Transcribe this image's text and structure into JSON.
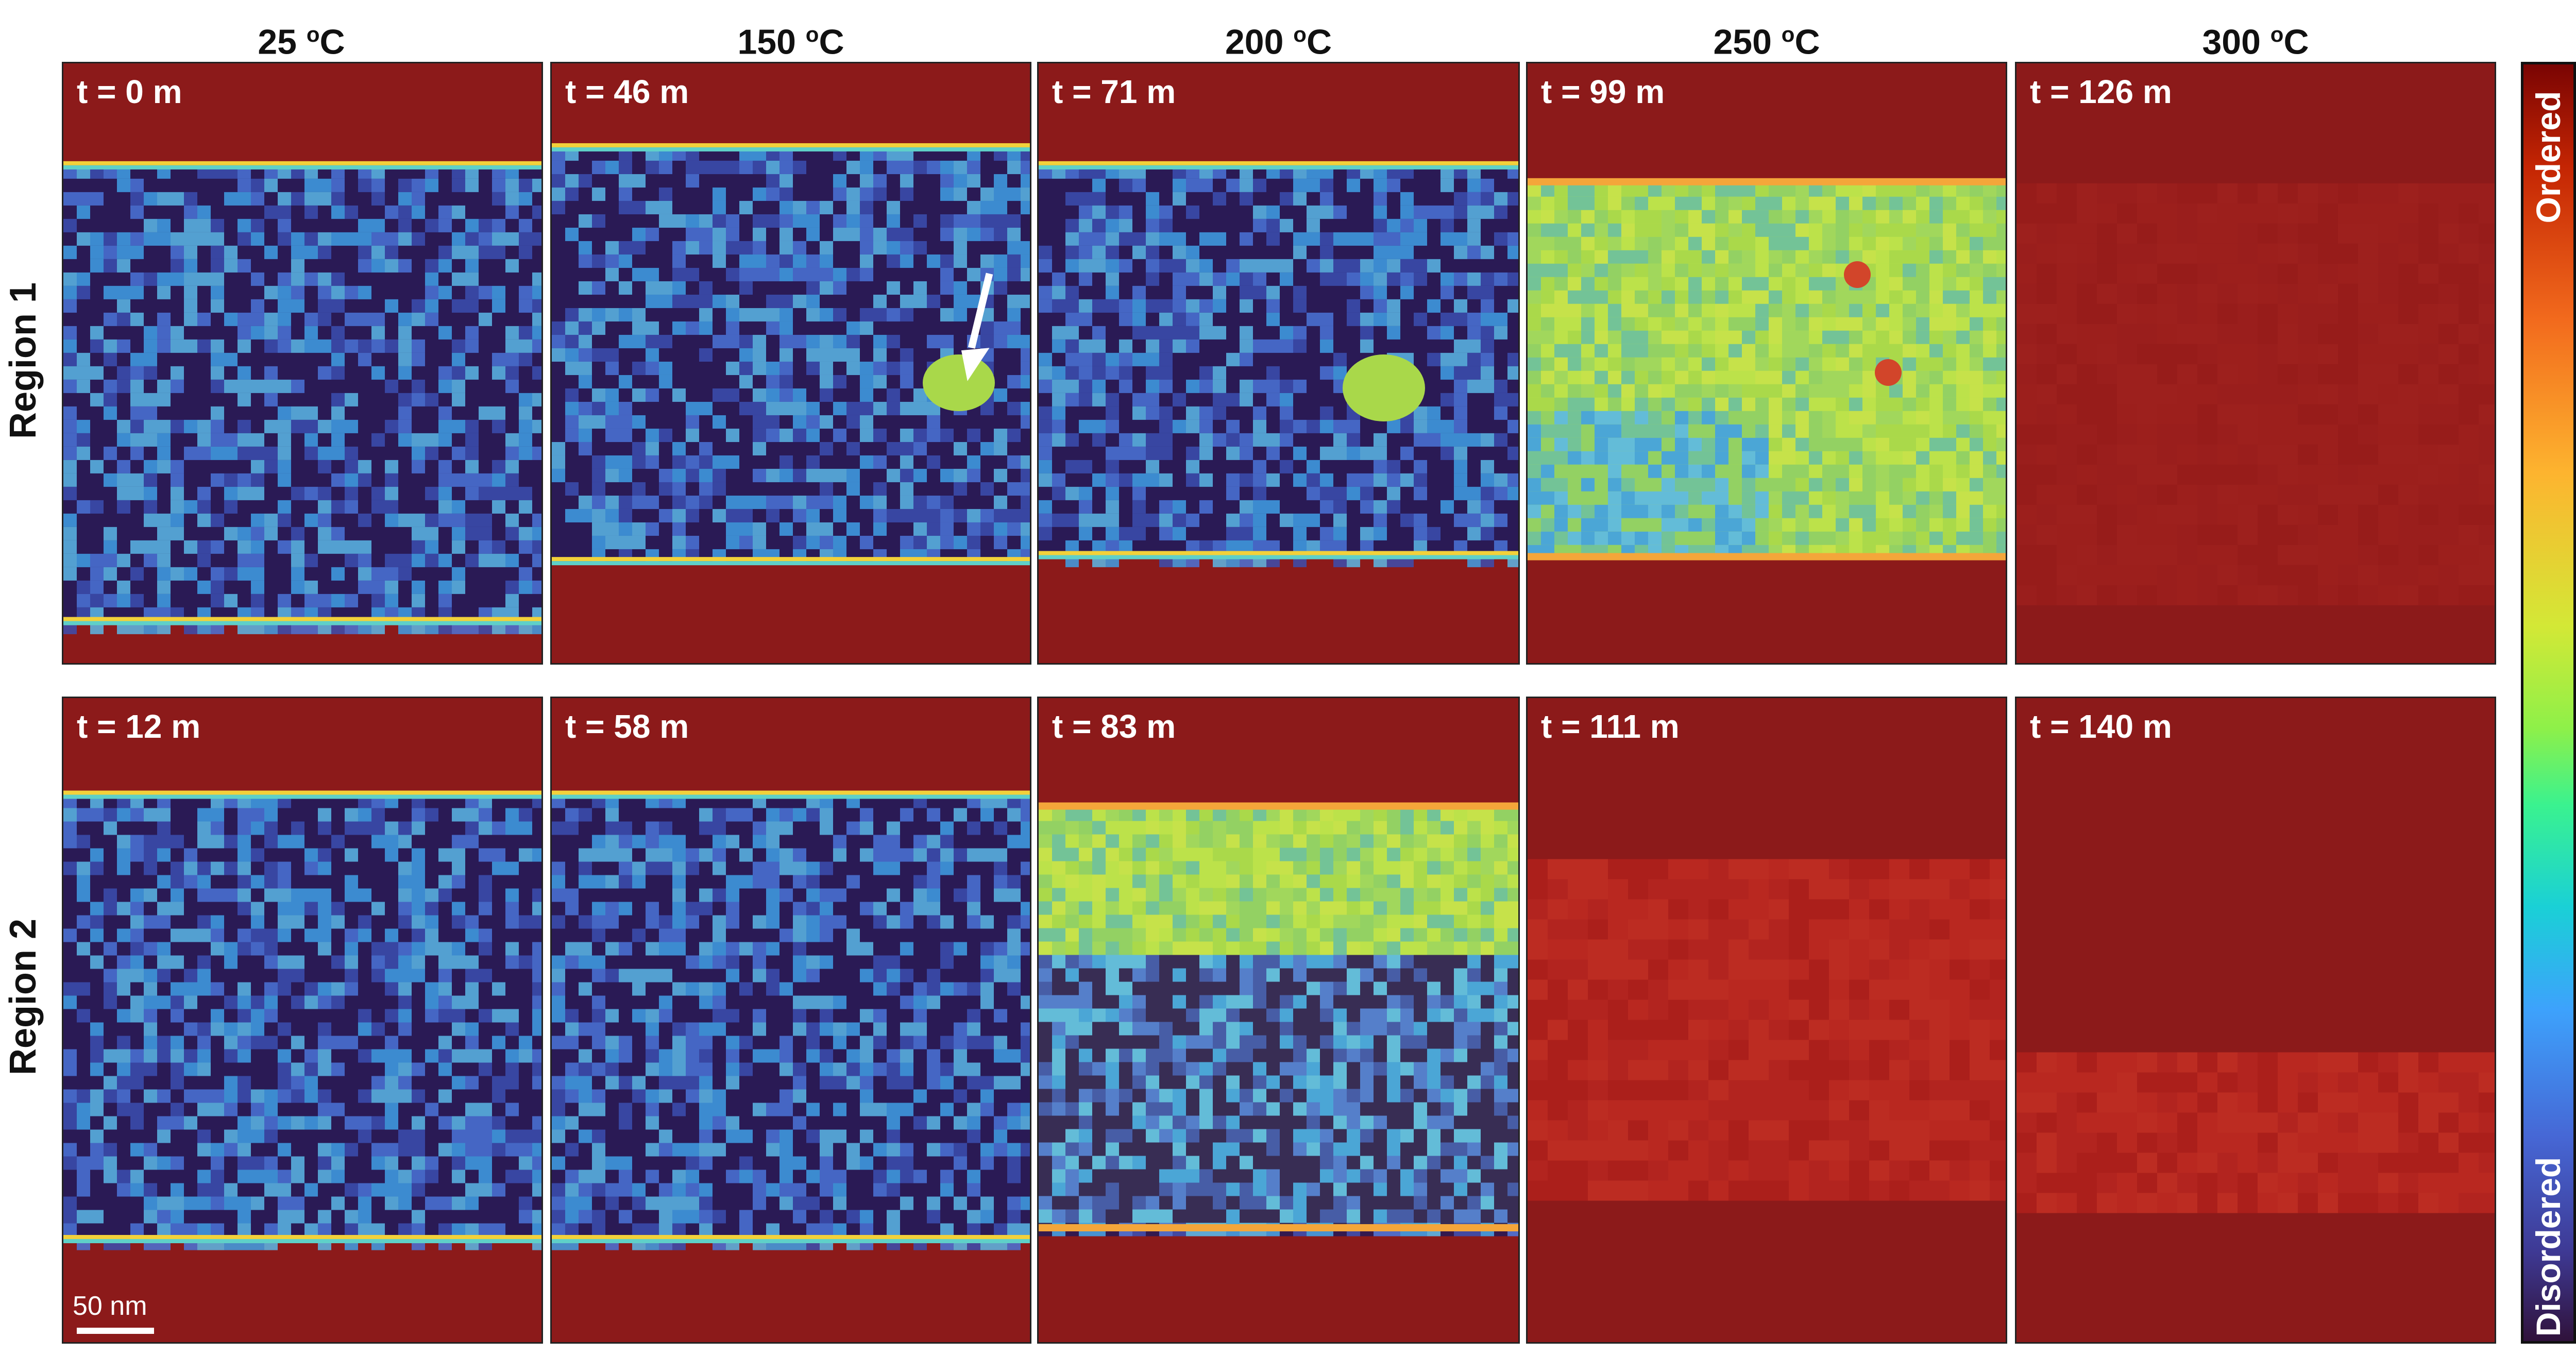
{
  "columns": [
    {
      "label": "25 ",
      "sup": "o",
      "unit": "C"
    },
    {
      "label": "150 ",
      "sup": "o",
      "unit": "C"
    },
    {
      "label": "200 ",
      "sup": "o",
      "unit": "C"
    },
    {
      "label": "250 ",
      "sup": "o",
      "unit": "C"
    },
    {
      "label": "300 ",
      "sup": "o",
      "unit": "C"
    }
  ],
  "rows": [
    {
      "label": "Region 1",
      "panels": [
        {
          "time": "t = 0 m",
          "state": "disordered"
        },
        {
          "time": "t = 46 m",
          "state": "disordered",
          "arrow": true
        },
        {
          "time": "t = 71 m",
          "state": "disordered"
        },
        {
          "time": "t = 99 m",
          "state": "partially-ordered"
        },
        {
          "time": "t = 126 m",
          "state": "ordered"
        }
      ]
    },
    {
      "label": "Region 2",
      "panels": [
        {
          "time": "t = 12 m",
          "state": "disordered"
        },
        {
          "time": "t = 58 m",
          "state": "disordered"
        },
        {
          "time": "t = 83 m",
          "state": "partially-ordered"
        },
        {
          "time": "t = 111 m",
          "state": "ordered"
        },
        {
          "time": "t = 140 m",
          "state": "ordered"
        }
      ]
    }
  ],
  "scale_bar": {
    "label": "50 nm"
  },
  "colorbar": {
    "top_label": "Ordered",
    "bottom_label": "Disordered"
  },
  "colors": {
    "ordered": "#8c1a1a",
    "disordered": "#2a1a55",
    "accent_green": "#b8e04a",
    "accent_blue": "#3a9ee0"
  }
}
